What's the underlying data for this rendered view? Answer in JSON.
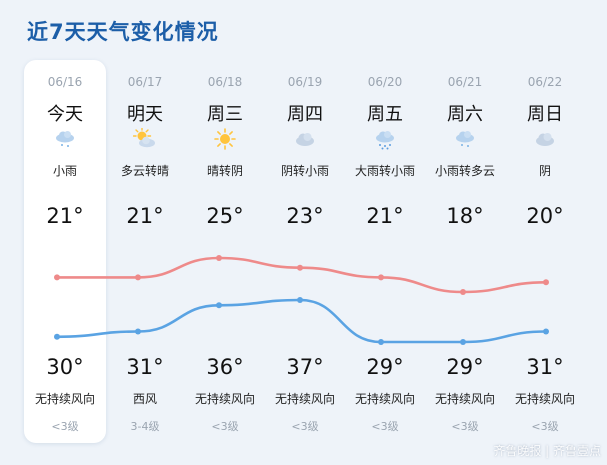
{
  "title": "近7天天气变化情况",
  "days": [
    {
      "date": "06/16",
      "name": "今天",
      "icon": "drizzle-icon",
      "cond": "小雨",
      "hi": "21°",
      "lo": "30°",
      "wind": "无持续风向",
      "level": "<3级"
    },
    {
      "date": "06/17",
      "name": "明天",
      "icon": "partly-cloudy-icon",
      "cond": "多云转晴",
      "hi": "21°",
      "lo": "31°",
      "wind": "西风",
      "level": "3-4级"
    },
    {
      "date": "06/18",
      "name": "周三",
      "icon": "sun-icon",
      "cond": "晴转阴",
      "hi": "25°",
      "lo": "36°",
      "wind": "无持续风向",
      "level": "<3级"
    },
    {
      "date": "06/19",
      "name": "周四",
      "icon": "cloud-icon",
      "cond": "阴转小雨",
      "hi": "23°",
      "lo": "37°",
      "wind": "无持续风向",
      "level": "<3级"
    },
    {
      "date": "06/20",
      "name": "周五",
      "icon": "heavy-rain-icon",
      "cond": "大雨转小雨",
      "hi": "21°",
      "lo": "29°",
      "wind": "无持续风向",
      "level": "<3级"
    },
    {
      "date": "06/21",
      "name": "周六",
      "icon": "drizzle-icon",
      "cond": "小雨转多云",
      "hi": "18°",
      "lo": "29°",
      "wind": "无持续风向",
      "level": "<3级"
    },
    {
      "date": "06/22",
      "name": "周日",
      "icon": "cloud-icon",
      "cond": "阴",
      "hi": "20°",
      "lo": "31°",
      "wind": "无持续风向",
      "level": "<3级"
    }
  ],
  "colors": {
    "title": "#1c5ea8",
    "upper_line": "#ee8a8a",
    "lower_line": "#5aa3e3",
    "background": "#eef3f9",
    "card": "#ffffff"
  },
  "chart_data": {
    "type": "line",
    "x": [
      "06/16",
      "06/17",
      "06/18",
      "06/19",
      "06/20",
      "06/21",
      "06/22"
    ],
    "series": [
      {
        "values": [
          21,
          21,
          25,
          23,
          21,
          18,
          20
        ]
      },
      {
        "values": [
          30,
          31,
          36,
          37,
          29,
          29,
          31
        ]
      }
    ]
  },
  "watermark": "齐鲁晚报 | 齐鲁壹点"
}
